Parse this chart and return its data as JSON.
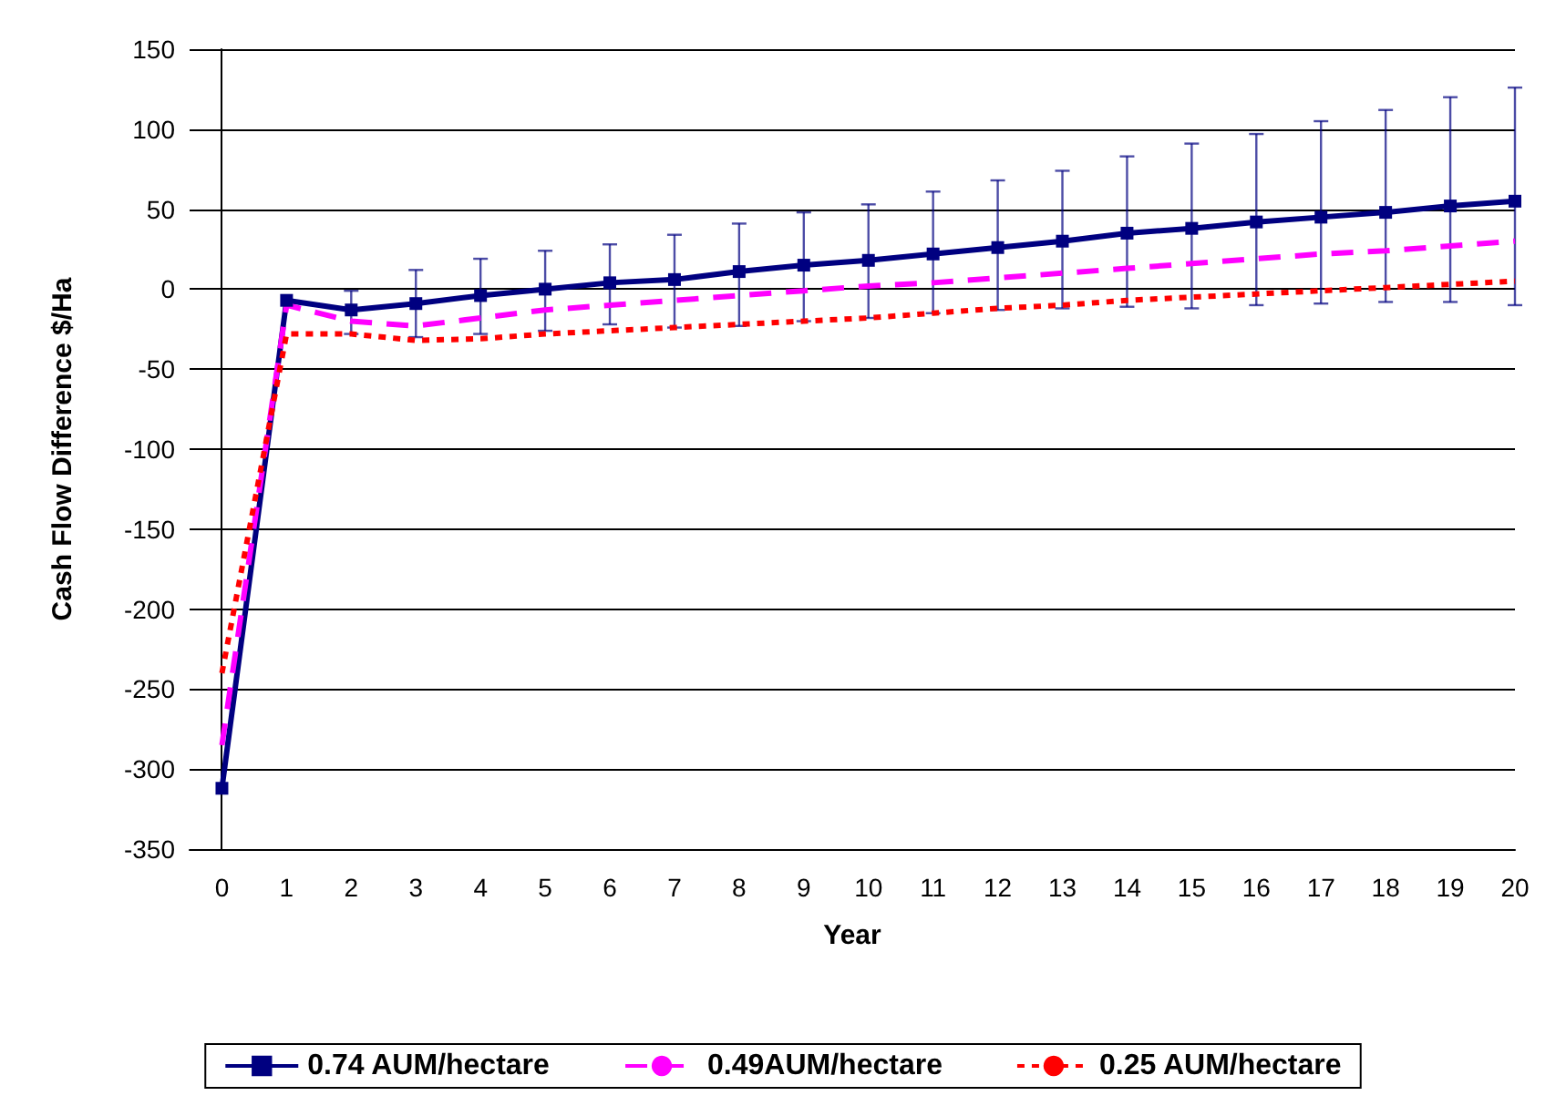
{
  "chart_data": {
    "type": "line",
    "xlabel": "Year",
    "ylabel": "Cash Flow Difference $/Ha",
    "x": [
      0,
      1,
      2,
      3,
      4,
      5,
      6,
      7,
      8,
      9,
      10,
      11,
      12,
      13,
      14,
      15,
      16,
      17,
      18,
      19,
      20
    ],
    "xlim": [
      -0.5,
      20
    ],
    "xticks": [
      0,
      1,
      2,
      3,
      4,
      5,
      6,
      7,
      8,
      9,
      10,
      11,
      12,
      13,
      14,
      15,
      16,
      17,
      18,
      19,
      20
    ],
    "ylim": [
      -350,
      150
    ],
    "yticks": [
      -350,
      -300,
      -250,
      -200,
      -150,
      -100,
      -50,
      0,
      50,
      100,
      150
    ],
    "grid": "y",
    "legend": "bottom",
    "series": [
      {
        "name": "0.74 AUM/hectare",
        "color": "#000080",
        "marker": "square",
        "line_style": "solid",
        "values": [
          -312,
          -7,
          -13,
          -9,
          -4,
          0,
          4,
          6,
          11,
          15,
          18,
          22,
          26,
          30,
          35,
          38,
          42,
          45,
          48,
          52,
          55
        ],
        "errors": [
          null,
          null,
          [
            -28,
            -1
          ],
          [
            -30,
            12
          ],
          [
            -28,
            19
          ],
          [
            -26,
            24
          ],
          [
            -22,
            28
          ],
          [
            -24,
            34
          ],
          [
            -23,
            41
          ],
          [
            -20,
            48
          ],
          [
            -18,
            53
          ],
          [
            -15,
            61
          ],
          [
            -13,
            68
          ],
          [
            -12,
            74
          ],
          [
            -11,
            83
          ],
          [
            -12,
            91
          ],
          [
            -10,
            97
          ],
          [
            -9,
            105
          ],
          [
            -8,
            112
          ],
          [
            -8,
            120
          ],
          [
            -10,
            126
          ]
        ]
      },
      {
        "name": "0.49AUM/hectare",
        "color": "#ff00ff",
        "marker": "none",
        "line_style": "dashed",
        "values": [
          -285,
          -10,
          -20,
          -23,
          -18,
          -13,
          -10,
          -7,
          -4,
          -1,
          2,
          4,
          7,
          10,
          13,
          16,
          19,
          22,
          24,
          27,
          30
        ]
      },
      {
        "name": "0.25 AUM/hectare",
        "color": "#ff0000",
        "marker": "none",
        "line_style": "dotted",
        "values": [
          -240,
          -28,
          -28,
          -32,
          -31,
          -28,
          -26,
          -24,
          -22,
          -20,
          -18,
          -15,
          -12,
          -10,
          -7,
          -5,
          -3,
          -1,
          1,
          3,
          5
        ]
      }
    ]
  }
}
